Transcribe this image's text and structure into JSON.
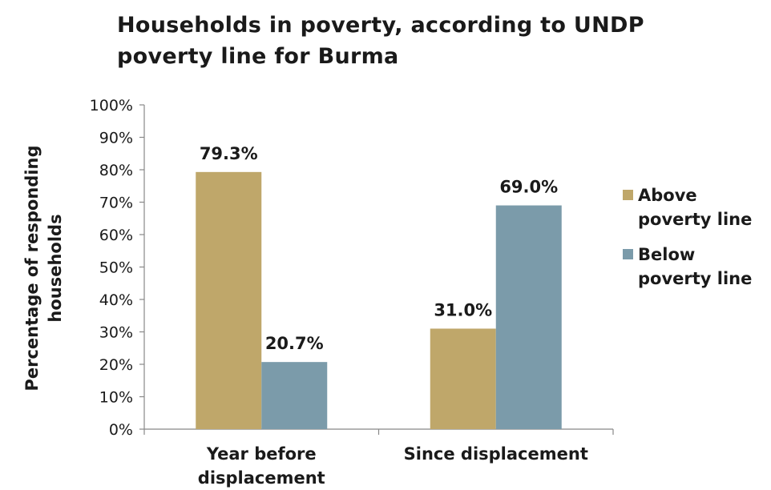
{
  "chart_data": {
    "type": "bar",
    "title": "Households in poverty, according to UNDP poverty line for Burma",
    "ylabel": "Percentage of responding households",
    "xlabel": "",
    "categories": [
      "Year before displacement",
      "Since displacement"
    ],
    "series": [
      {
        "name": "Above poverty line",
        "values": [
          79.3,
          31.0
        ],
        "labels": [
          "79.3%",
          "31.0%"
        ],
        "color": "#BFA76A"
      },
      {
        "name": "Below poverty line",
        "values": [
          20.7,
          69.0
        ],
        "labels": [
          "20.7%",
          "69.0%"
        ],
        "color": "#7B9BAA"
      }
    ],
    "ylim": [
      0,
      100
    ],
    "yticks": [
      "0%",
      "10%",
      "20%",
      "30%",
      "40%",
      "50%",
      "60%",
      "70%",
      "80%",
      "90%",
      "100%"
    ],
    "grid": false,
    "legend_position": "right"
  }
}
